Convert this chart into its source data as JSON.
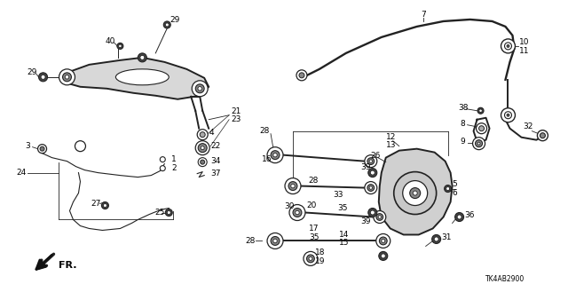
{
  "diagram_code": "TK4AB2900",
  "bg_color": "#ffffff",
  "lc": "#222222"
}
